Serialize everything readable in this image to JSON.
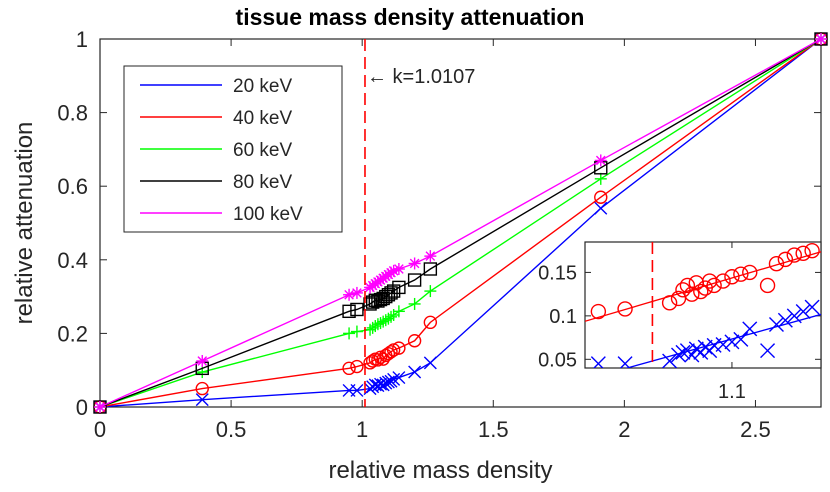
{
  "chart_data": [
    {
      "type": "line",
      "title": "tissue mass density attenuation",
      "xlabel": "relative mass density",
      "ylabel": "relative attenuation",
      "xlim": [
        0,
        2.75
      ],
      "ylim": [
        0,
        1
      ],
      "xticks": [
        0,
        0.5,
        1,
        1.5,
        2,
        2.5
      ],
      "xtick_labels": [
        "0",
        "0.5",
        "1",
        "1.5",
        "2",
        "2.5"
      ],
      "yticks": [
        0,
        0.2,
        0.4,
        0.6,
        0.8,
        1
      ],
      "ytick_labels": [
        "0",
        "0.2",
        "0.4",
        "0.6",
        "0.8",
        "1"
      ],
      "grid": false,
      "legend_position": "top-left",
      "vline": {
        "x": 1.0107,
        "color": "#ff0000",
        "style": "dashed"
      },
      "annotation": {
        "text": "← k=1.0107",
        "x": 1.0107,
        "y": 0.9
      },
      "series": [
        {
          "name": "20 keV",
          "color": "#0000ff",
          "marker": "x",
          "x": [
            0,
            0.39,
            0.95,
            0.98,
            1.03,
            1.04,
            1.05,
            1.06,
            1.07,
            1.08,
            1.09,
            1.1,
            1.11,
            1.12,
            1.14,
            1.2,
            1.26,
            1.91,
            2.75
          ],
          "y": [
            0,
            0.02,
            0.045,
            0.045,
            0.05,
            0.055,
            0.06,
            0.058,
            0.062,
            0.06,
            0.065,
            0.068,
            0.07,
            0.075,
            0.08,
            0.095,
            0.12,
            0.54,
            1
          ]
        },
        {
          "name": "40 keV",
          "color": "#ff0000",
          "marker": "o",
          "x": [
            0,
            0.39,
            0.95,
            0.98,
            1.03,
            1.04,
            1.05,
            1.06,
            1.07,
            1.08,
            1.09,
            1.1,
            1.11,
            1.12,
            1.14,
            1.2,
            1.26,
            1.91,
            2.75
          ],
          "y": [
            0,
            0.05,
            0.105,
            0.11,
            0.12,
            0.125,
            0.13,
            0.128,
            0.135,
            0.13,
            0.14,
            0.145,
            0.15,
            0.155,
            0.16,
            0.18,
            0.23,
            0.57,
            1
          ]
        },
        {
          "name": "60 keV",
          "color": "#00ff00",
          "marker": "+",
          "x": [
            0,
            0.39,
            0.95,
            0.98,
            1.03,
            1.04,
            1.05,
            1.06,
            1.07,
            1.08,
            1.09,
            1.1,
            1.11,
            1.12,
            1.14,
            1.2,
            1.26,
            1.91,
            2.75
          ],
          "y": [
            0,
            0.095,
            0.2,
            0.205,
            0.21,
            0.215,
            0.22,
            0.225,
            0.228,
            0.232,
            0.236,
            0.24,
            0.245,
            0.25,
            0.26,
            0.28,
            0.315,
            0.62,
            1
          ]
        },
        {
          "name": "80 keV",
          "color": "#000000",
          "marker": "s",
          "x": [
            0,
            0.39,
            0.95,
            0.98,
            1.03,
            1.04,
            1.05,
            1.06,
            1.07,
            1.08,
            1.09,
            1.1,
            1.11,
            1.12,
            1.14,
            1.2,
            1.26,
            1.91,
            2.75
          ],
          "y": [
            0,
            0.105,
            0.26,
            0.265,
            0.28,
            0.285,
            0.29,
            0.288,
            0.292,
            0.295,
            0.3,
            0.305,
            0.31,
            0.315,
            0.325,
            0.345,
            0.375,
            0.65,
            1
          ]
        },
        {
          "name": "100 keV",
          "color": "#ff00ff",
          "marker": "*",
          "x": [
            0,
            0.39,
            0.95,
            0.98,
            1.03,
            1.04,
            1.05,
            1.06,
            1.07,
            1.08,
            1.09,
            1.1,
            1.11,
            1.12,
            1.14,
            1.2,
            1.26,
            1.91,
            2.75
          ],
          "y": [
            0,
            0.125,
            0.305,
            0.31,
            0.325,
            0.33,
            0.335,
            0.34,
            0.345,
            0.35,
            0.355,
            0.36,
            0.365,
            0.37,
            0.375,
            0.39,
            0.41,
            0.67,
            1
          ]
        }
      ]
    },
    {
      "type": "line",
      "title": "",
      "xlabel": "",
      "ylabel": "",
      "xlim": [
        0.935,
        1.2
      ],
      "ylim": [
        0.04,
        0.185
      ],
      "xticks": [
        1.1
      ],
      "xtick_labels": [
        "1.1"
      ],
      "yticks": [
        0.05,
        0.1,
        0.15
      ],
      "ytick_labels": [
        "0.05",
        "0.1",
        "0.15"
      ],
      "grid": false,
      "vline": {
        "x": 1.0107,
        "color": "#ff0000",
        "style": "dashed"
      },
      "series": [
        {
          "name": "20 keV",
          "color": "#0000ff",
          "marker": "x",
          "x": [
            0.95,
            0.98,
            1.03,
            1.04,
            1.045,
            1.05,
            1.055,
            1.06,
            1.065,
            1.07,
            1.075,
            1.08,
            1.09,
            1.1,
            1.11,
            1.12,
            1.14,
            1.15,
            1.16,
            1.17,
            1.18,
            1.19
          ],
          "y": [
            0.045,
            0.045,
            0.048,
            0.055,
            0.058,
            0.06,
            0.055,
            0.062,
            0.058,
            0.064,
            0.06,
            0.066,
            0.067,
            0.07,
            0.073,
            0.085,
            0.06,
            0.09,
            0.095,
            0.1,
            0.105,
            0.11
          ]
        },
        {
          "name": "40 keV",
          "color": "#ff0000",
          "marker": "o",
          "x": [
            0.95,
            0.98,
            1.03,
            1.04,
            1.045,
            1.05,
            1.055,
            1.06,
            1.065,
            1.07,
            1.075,
            1.08,
            1.09,
            1.1,
            1.11,
            1.12,
            1.14,
            1.15,
            1.16,
            1.17,
            1.18,
            1.19
          ],
          "y": [
            0.105,
            0.108,
            0.115,
            0.12,
            0.13,
            0.135,
            0.125,
            0.138,
            0.128,
            0.132,
            0.14,
            0.135,
            0.14,
            0.145,
            0.148,
            0.15,
            0.135,
            0.16,
            0.165,
            0.17,
            0.172,
            0.175
          ]
        }
      ]
    }
  ]
}
